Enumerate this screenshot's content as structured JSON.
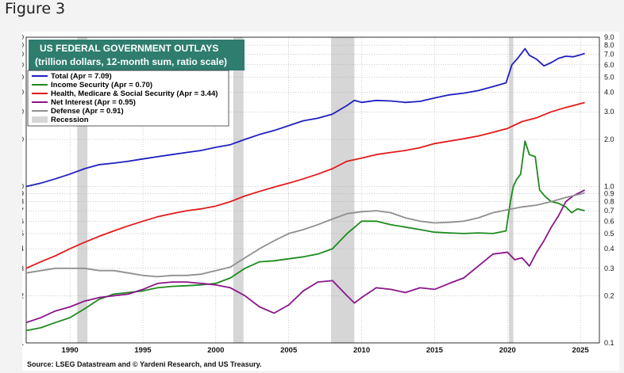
{
  "figure_label": "Figure 3",
  "chart_data": {
    "type": "line",
    "title": "US FEDERAL GOVERNMENT OUTLAYS",
    "subtitle": "(trillion dollars, 12-month sum, ratio scale)",
    "source": "Source: LSEG Datastream and © Yardeni Research, and US Treasury.",
    "y_scale": "log",
    "ylim": [
      0.1,
      9.0
    ],
    "xlim": [
      1987.0,
      2026.3
    ],
    "y_ticks": [
      {
        "v": 9.0,
        "label": "9.0"
      },
      {
        "v": 8.0,
        "label": "8.0"
      },
      {
        "v": 7.0,
        "label": "7.0"
      },
      {
        "v": 6.0,
        "label": "6.0"
      },
      {
        "v": 5.0,
        "label": "5.0"
      },
      {
        "v": 4.0,
        "label": "4.0"
      },
      {
        "v": 3.0,
        "label": "3.0"
      },
      {
        "v": 2.0,
        "label": "2.0"
      },
      {
        "v": 1.0,
        "label": "1.0"
      },
      {
        "v": 0.9,
        "label": "0.9"
      },
      {
        "v": 0.8,
        "label": "0.8"
      },
      {
        "v": 0.7,
        "label": "0.7"
      },
      {
        "v": 0.6,
        "label": "0.6"
      },
      {
        "v": 0.5,
        "label": "0.5"
      },
      {
        "v": 0.4,
        "label": "0.4"
      },
      {
        "v": 0.3,
        "label": "0.3"
      },
      {
        "v": 0.2,
        "label": "0.2"
      },
      {
        "v": 0.1,
        "label": "0.1"
      }
    ],
    "x_ticks": [
      {
        "v": 1990,
        "label": "1990"
      },
      {
        "v": 1995,
        "label": "1995"
      },
      {
        "v": 2000,
        "label": "2000"
      },
      {
        "v": 2005,
        "label": "2005"
      },
      {
        "v": 2010,
        "label": "2010"
      },
      {
        "v": 2015,
        "label": "2015"
      },
      {
        "v": 2020,
        "label": "2020"
      },
      {
        "v": 2025,
        "label": "2025"
      }
    ],
    "recessions": [
      [
        1990.5,
        1991.2
      ],
      [
        2001.2,
        2001.9
      ],
      [
        2007.9,
        2009.5
      ],
      [
        2020.1,
        2020.4
      ]
    ],
    "series": [
      {
        "name": "Total",
        "legend": "Total  (Apr = 7.09)",
        "color": "#1f1fbf",
        "points": [
          [
            1987,
            1.0
          ],
          [
            1988,
            1.05
          ],
          [
            1989,
            1.12
          ],
          [
            1990,
            1.2
          ],
          [
            1991,
            1.3
          ],
          [
            1992,
            1.38
          ],
          [
            1993,
            1.41
          ],
          [
            1994,
            1.45
          ],
          [
            1995,
            1.5
          ],
          [
            1996,
            1.55
          ],
          [
            1997,
            1.6
          ],
          [
            1998,
            1.65
          ],
          [
            1999,
            1.7
          ],
          [
            2000,
            1.78
          ],
          [
            2001,
            1.85
          ],
          [
            2002,
            2.0
          ],
          [
            2003,
            2.15
          ],
          [
            2004,
            2.28
          ],
          [
            2005,
            2.45
          ],
          [
            2006,
            2.63
          ],
          [
            2007,
            2.73
          ],
          [
            2008,
            2.9
          ],
          [
            2009,
            3.3
          ],
          [
            2009.5,
            3.55
          ],
          [
            2010,
            3.45
          ],
          [
            2011,
            3.55
          ],
          [
            2012,
            3.52
          ],
          [
            2013,
            3.45
          ],
          [
            2014,
            3.5
          ],
          [
            2015,
            3.68
          ],
          [
            2016,
            3.85
          ],
          [
            2017,
            3.95
          ],
          [
            2018,
            4.1
          ],
          [
            2019,
            4.35
          ],
          [
            2019.9,
            4.6
          ],
          [
            2020.3,
            6.0
          ],
          [
            2020.7,
            6.6
          ],
          [
            2021.2,
            7.6
          ],
          [
            2021.5,
            6.9
          ],
          [
            2022,
            6.5
          ],
          [
            2022.5,
            5.9
          ],
          [
            2023,
            6.2
          ],
          [
            2023.5,
            6.6
          ],
          [
            2024,
            6.8
          ],
          [
            2024.5,
            6.75
          ],
          [
            2025.0,
            6.95
          ],
          [
            2025.3,
            7.09
          ]
        ]
      },
      {
        "name": "Income Security",
        "legend": "Income Security  (Apr = 0.70)",
        "color": "#1e8a1e",
        "points": [
          [
            1987,
            0.12
          ],
          [
            1988,
            0.125
          ],
          [
            1989,
            0.135
          ],
          [
            1990,
            0.145
          ],
          [
            1991,
            0.165
          ],
          [
            1992,
            0.19
          ],
          [
            1993,
            0.205
          ],
          [
            1994,
            0.21
          ],
          [
            1995,
            0.215
          ],
          [
            1996,
            0.225
          ],
          [
            1997,
            0.23
          ],
          [
            1998,
            0.232
          ],
          [
            1999,
            0.235
          ],
          [
            2000,
            0.24
          ],
          [
            2001,
            0.26
          ],
          [
            2002,
            0.3
          ],
          [
            2003,
            0.33
          ],
          [
            2004,
            0.335
          ],
          [
            2005,
            0.345
          ],
          [
            2006,
            0.355
          ],
          [
            2007,
            0.37
          ],
          [
            2008,
            0.4
          ],
          [
            2009,
            0.5
          ],
          [
            2010,
            0.6
          ],
          [
            2011,
            0.6
          ],
          [
            2012,
            0.57
          ],
          [
            2013,
            0.55
          ],
          [
            2014,
            0.53
          ],
          [
            2015,
            0.51
          ],
          [
            2016,
            0.505
          ],
          [
            2017,
            0.5
          ],
          [
            2018,
            0.505
          ],
          [
            2019,
            0.5
          ],
          [
            2019.9,
            0.52
          ],
          [
            2020.2,
            0.8
          ],
          [
            2020.4,
            1.0
          ],
          [
            2020.6,
            1.1
          ],
          [
            2020.9,
            1.2
          ],
          [
            2021.2,
            1.95
          ],
          [
            2021.5,
            1.6
          ],
          [
            2021.9,
            1.55
          ],
          [
            2022.2,
            0.95
          ],
          [
            2022.6,
            0.86
          ],
          [
            2023,
            0.8
          ],
          [
            2023.5,
            0.78
          ],
          [
            2024,
            0.74
          ],
          [
            2024.4,
            0.68
          ],
          [
            2024.8,
            0.72
          ],
          [
            2025.3,
            0.7
          ]
        ]
      },
      {
        "name": "Health, Medicare & Social Security",
        "legend": "Health, Medicare & Social Security  (Apr = 3.44)",
        "color": "#e31a1a",
        "points": [
          [
            1987,
            0.3
          ],
          [
            1988,
            0.33
          ],
          [
            1989,
            0.36
          ],
          [
            1990,
            0.4
          ],
          [
            1991,
            0.44
          ],
          [
            1992,
            0.48
          ],
          [
            1993,
            0.52
          ],
          [
            1994,
            0.56
          ],
          [
            1995,
            0.6
          ],
          [
            1996,
            0.64
          ],
          [
            1997,
            0.67
          ],
          [
            1998,
            0.7
          ],
          [
            1999,
            0.72
          ],
          [
            2000,
            0.75
          ],
          [
            2001,
            0.8
          ],
          [
            2002,
            0.87
          ],
          [
            2003,
            0.93
          ],
          [
            2004,
            0.99
          ],
          [
            2005,
            1.05
          ],
          [
            2006,
            1.12
          ],
          [
            2007,
            1.2
          ],
          [
            2008,
            1.3
          ],
          [
            2009,
            1.45
          ],
          [
            2010,
            1.52
          ],
          [
            2011,
            1.6
          ],
          [
            2012,
            1.65
          ],
          [
            2013,
            1.7
          ],
          [
            2014,
            1.77
          ],
          [
            2015,
            1.88
          ],
          [
            2016,
            1.95
          ],
          [
            2017,
            2.02
          ],
          [
            2018,
            2.1
          ],
          [
            2019,
            2.22
          ],
          [
            2020,
            2.35
          ],
          [
            2021,
            2.6
          ],
          [
            2022,
            2.75
          ],
          [
            2023,
            3.0
          ],
          [
            2024,
            3.2
          ],
          [
            2025.3,
            3.44
          ]
        ]
      },
      {
        "name": "Net Interest",
        "legend": "Net Interest  (Apr = 0.95)",
        "color": "#8b158b",
        "points": [
          [
            1987,
            0.135
          ],
          [
            1988,
            0.145
          ],
          [
            1989,
            0.16
          ],
          [
            1990,
            0.17
          ],
          [
            1991,
            0.185
          ],
          [
            1992,
            0.195
          ],
          [
            1993,
            0.2
          ],
          [
            1994,
            0.205
          ],
          [
            1995,
            0.22
          ],
          [
            1996,
            0.24
          ],
          [
            1997,
            0.245
          ],
          [
            1998,
            0.245
          ],
          [
            1999,
            0.24
          ],
          [
            2000,
            0.235
          ],
          [
            2001,
            0.225
          ],
          [
            2002,
            0.2
          ],
          [
            2003,
            0.17
          ],
          [
            2004,
            0.155
          ],
          [
            2005,
            0.175
          ],
          [
            2006,
            0.215
          ],
          [
            2007,
            0.245
          ],
          [
            2008,
            0.25
          ],
          [
            2009,
            0.2
          ],
          [
            2009.5,
            0.18
          ],
          [
            2010,
            0.195
          ],
          [
            2011,
            0.225
          ],
          [
            2012,
            0.22
          ],
          [
            2013,
            0.21
          ],
          [
            2014,
            0.225
          ],
          [
            2015,
            0.22
          ],
          [
            2016,
            0.24
          ],
          [
            2017,
            0.26
          ],
          [
            2018,
            0.31
          ],
          [
            2019,
            0.37
          ],
          [
            2020,
            0.38
          ],
          [
            2020.5,
            0.34
          ],
          [
            2021,
            0.35
          ],
          [
            2021.5,
            0.31
          ],
          [
            2022,
            0.38
          ],
          [
            2022.5,
            0.45
          ],
          [
            2023,
            0.55
          ],
          [
            2023.5,
            0.65
          ],
          [
            2024,
            0.8
          ],
          [
            2024.5,
            0.87
          ],
          [
            2025.3,
            0.95
          ]
        ]
      },
      {
        "name": "Defense",
        "legend": "Defense  (Apr = 0.91)",
        "color": "#8f8f8f",
        "points": [
          [
            1987,
            0.28
          ],
          [
            1988,
            0.29
          ],
          [
            1989,
            0.3
          ],
          [
            1990,
            0.3
          ],
          [
            1991,
            0.3
          ],
          [
            1992,
            0.29
          ],
          [
            1993,
            0.29
          ],
          [
            1994,
            0.28
          ],
          [
            1995,
            0.27
          ],
          [
            1996,
            0.265
          ],
          [
            1997,
            0.27
          ],
          [
            1998,
            0.27
          ],
          [
            1999,
            0.275
          ],
          [
            2000,
            0.29
          ],
          [
            2001,
            0.305
          ],
          [
            2002,
            0.35
          ],
          [
            2003,
            0.4
          ],
          [
            2004,
            0.45
          ],
          [
            2005,
            0.5
          ],
          [
            2006,
            0.53
          ],
          [
            2007,
            0.57
          ],
          [
            2008,
            0.62
          ],
          [
            2009,
            0.67
          ],
          [
            2010,
            0.69
          ],
          [
            2011,
            0.7
          ],
          [
            2012,
            0.68
          ],
          [
            2013,
            0.63
          ],
          [
            2014,
            0.6
          ],
          [
            2015,
            0.585
          ],
          [
            2016,
            0.59
          ],
          [
            2017,
            0.6
          ],
          [
            2018,
            0.63
          ],
          [
            2019,
            0.68
          ],
          [
            2020,
            0.71
          ],
          [
            2021,
            0.74
          ],
          [
            2022,
            0.76
          ],
          [
            2023,
            0.8
          ],
          [
            2024,
            0.85
          ],
          [
            2025.3,
            0.91
          ]
        ]
      }
    ],
    "legend_extra": "Recession"
  }
}
